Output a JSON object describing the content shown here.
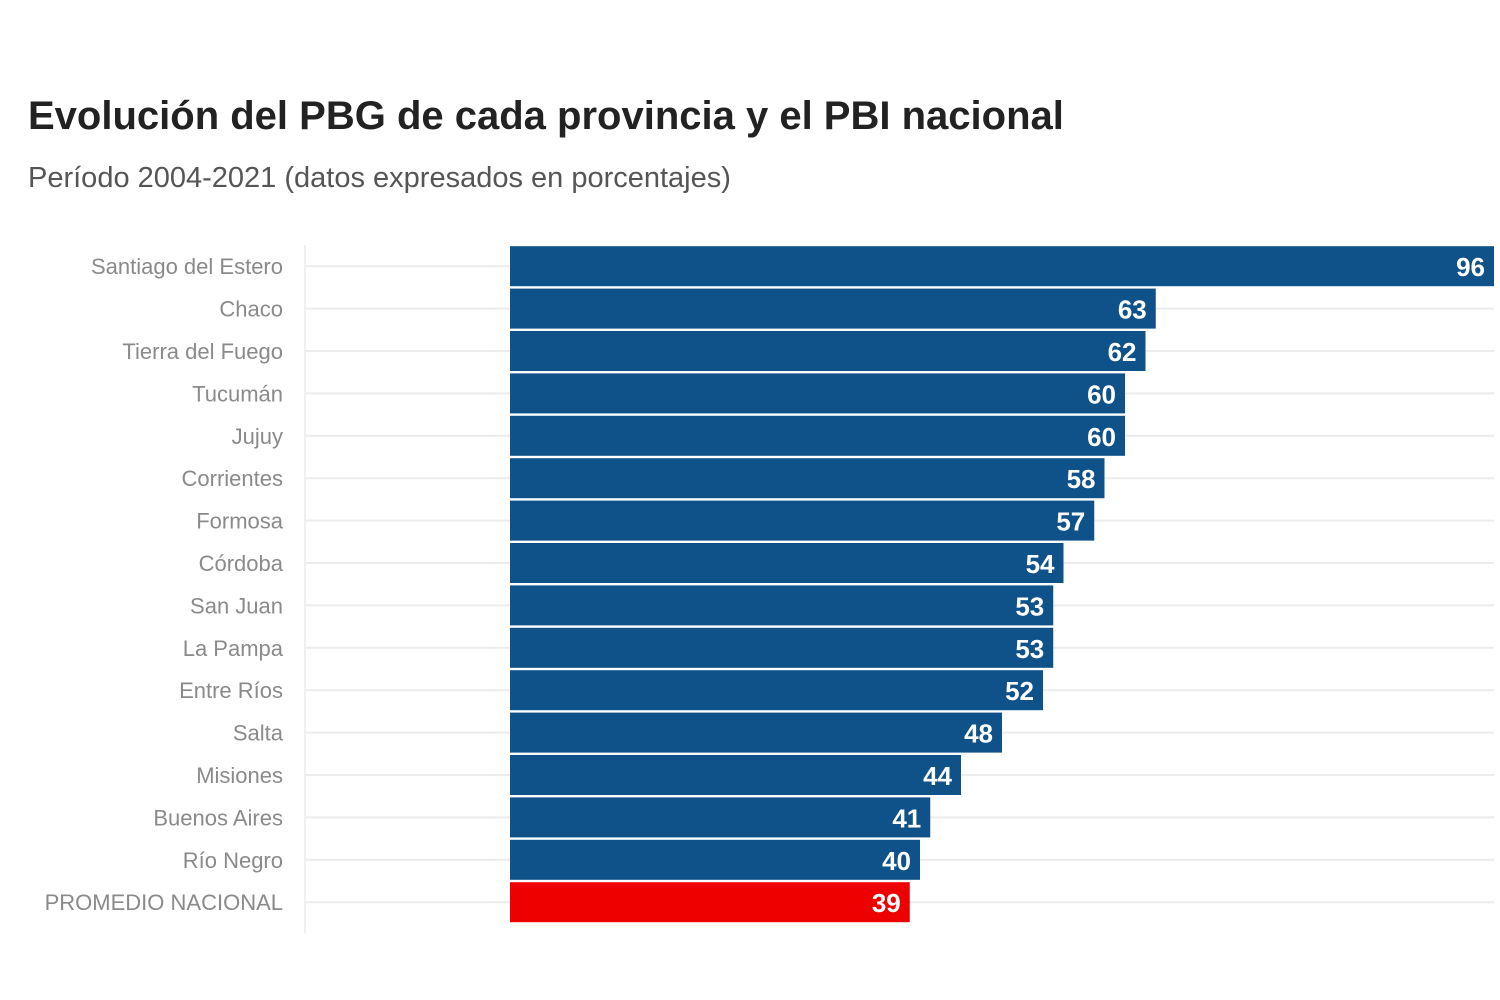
{
  "chart_data": {
    "type": "bar",
    "orientation": "horizontal",
    "title": "Evolución del PBG de cada provincia y el PBI nacional",
    "subtitle": "Período 2004-2021 (datos expresados en porcentajes)",
    "categories": [
      "Santiago del Estero",
      "Chaco",
      "Tierra del Fuego",
      "Tucumán",
      "Jujuy",
      "Corrientes",
      "Formosa",
      "Córdoba",
      "San Juan",
      "La Pampa",
      "Entre Ríos",
      "Salta",
      "Misiones",
      "Buenos Aires",
      "Río Negro",
      "PROMEDIO NACIONAL"
    ],
    "values": [
      96,
      63,
      62,
      60,
      60,
      58,
      57,
      54,
      53,
      53,
      52,
      48,
      44,
      41,
      40,
      39
    ],
    "xlim": [
      -20,
      96
    ],
    "grid": true,
    "legend": "none",
    "colors": {
      "bar": "#0f5189",
      "highlight": "#ee0000",
      "gridline": "#ececec",
      "category_text": "#8a8a8a",
      "value_text": "#ffffff"
    },
    "highlight_category": "PROMEDIO NACIONAL"
  }
}
